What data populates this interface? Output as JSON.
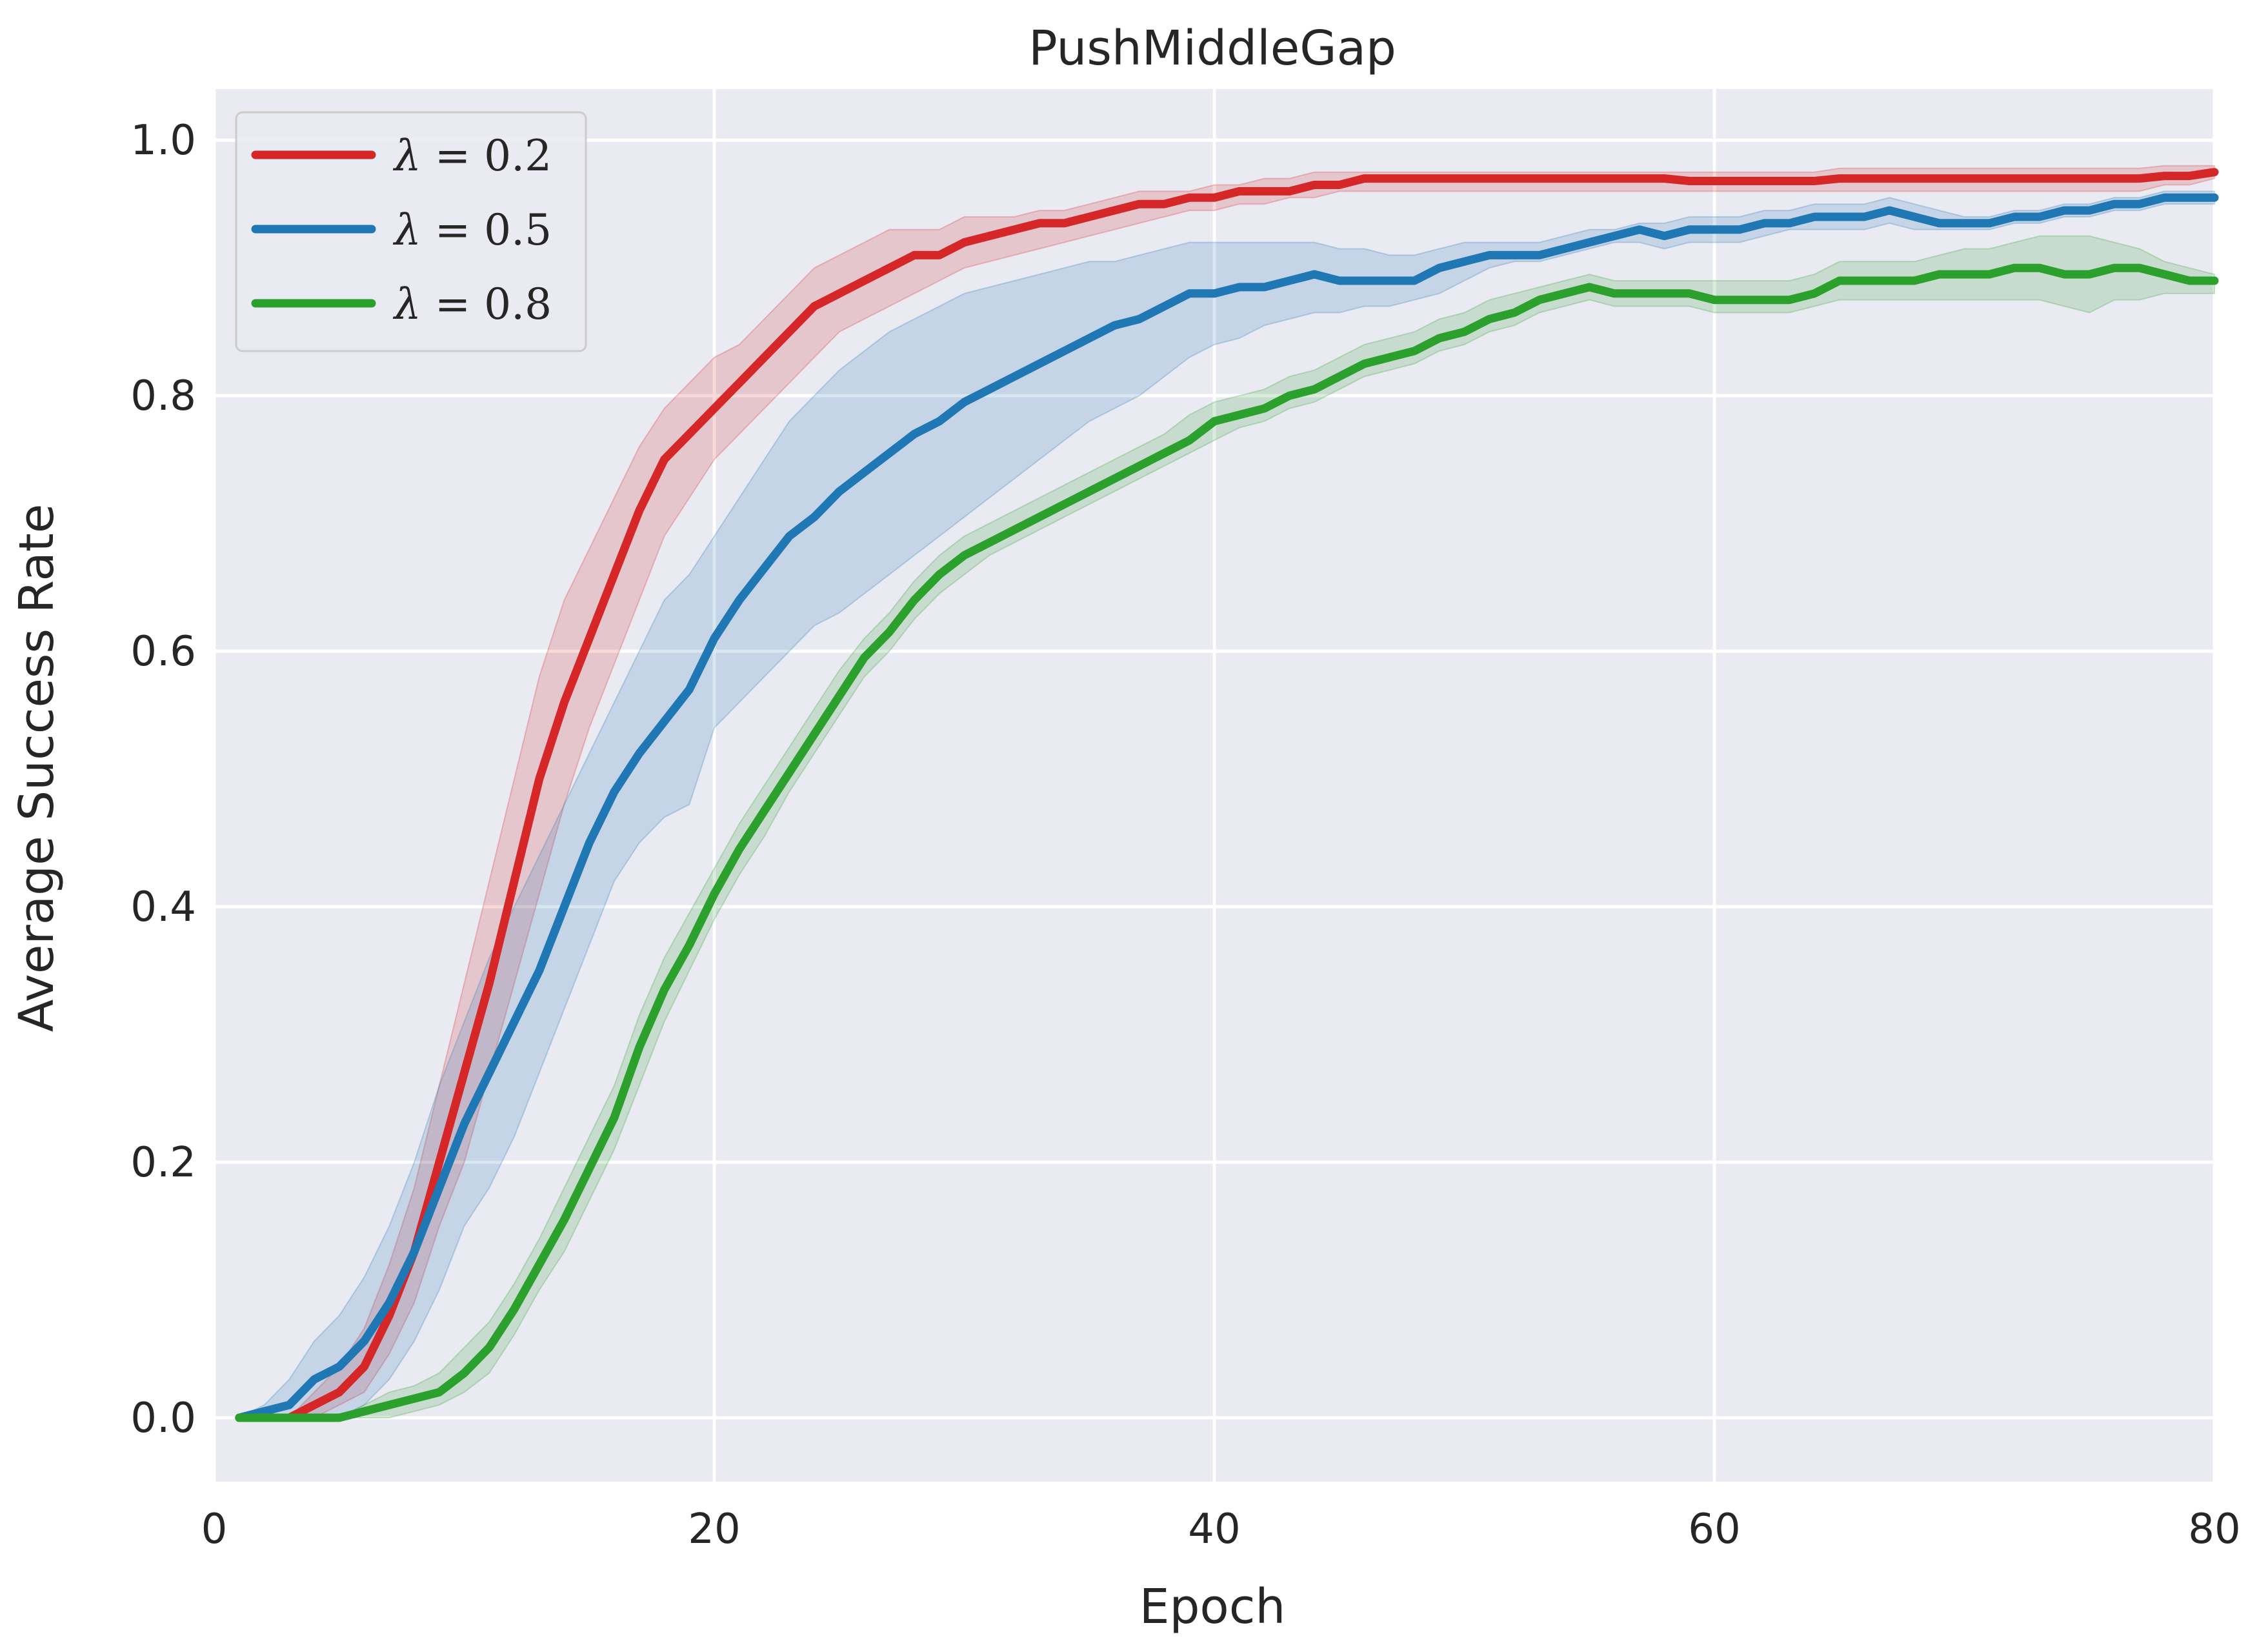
{
  "chart_data": {
    "type": "line",
    "title": "PushMiddleGap",
    "xlabel": "Epoch",
    "ylabel": "Average Success Rate",
    "xlim": [
      0,
      80
    ],
    "ylim": [
      -0.05,
      1.04
    ],
    "xticks": [
      0,
      20,
      40,
      60,
      80
    ],
    "xtick_labels": [
      "0",
      "20",
      "40",
      "60",
      "80"
    ],
    "yticks": [
      0.0,
      0.2,
      0.4,
      0.6,
      0.8,
      1.0
    ],
    "ytick_labels": [
      "0.0",
      "0.2",
      "0.4",
      "0.6",
      "0.8",
      "1.0"
    ],
    "grid": true,
    "legend_position": "top-left",
    "colors": {
      "background": "#eaeaf2",
      "grid": "#ffffff"
    },
    "x": [
      1,
      2,
      3,
      4,
      5,
      6,
      7,
      8,
      9,
      10,
      11,
      12,
      13,
      14,
      15,
      16,
      17,
      18,
      19,
      20,
      21,
      22,
      23,
      24,
      25,
      26,
      27,
      28,
      29,
      30,
      31,
      32,
      33,
      34,
      35,
      36,
      37,
      38,
      39,
      40,
      41,
      42,
      43,
      44,
      45,
      46,
      47,
      48,
      49,
      50,
      51,
      52,
      53,
      54,
      55,
      56,
      57,
      58,
      59,
      60,
      61,
      62,
      63,
      64,
      65,
      66,
      67,
      68,
      69,
      70,
      71,
      72,
      73,
      74,
      75,
      76,
      77,
      78,
      79,
      80
    ],
    "series": [
      {
        "name": "λ = 0.2",
        "label_var": "λ",
        "label_val": "0.2",
        "color": "#d62728",
        "values": [
          0,
          0,
          0,
          0.01,
          0.02,
          0.04,
          0.08,
          0.13,
          0.2,
          0.27,
          0.34,
          0.42,
          0.5,
          0.56,
          0.61,
          0.66,
          0.71,
          0.75,
          0.77,
          0.79,
          0.81,
          0.83,
          0.85,
          0.87,
          0.88,
          0.89,
          0.9,
          0.91,
          0.91,
          0.92,
          0.925,
          0.93,
          0.935,
          0.935,
          0.94,
          0.945,
          0.95,
          0.95,
          0.955,
          0.955,
          0.96,
          0.96,
          0.96,
          0.965,
          0.965,
          0.97,
          0.97,
          0.97,
          0.97,
          0.97,
          0.97,
          0.97,
          0.97,
          0.97,
          0.97,
          0.97,
          0.97,
          0.97,
          0.968,
          0.968,
          0.968,
          0.968,
          0.968,
          0.968,
          0.97,
          0.97,
          0.97,
          0.97,
          0.97,
          0.97,
          0.97,
          0.97,
          0.97,
          0.97,
          0.97,
          0.97,
          0.97,
          0.972,
          0.972,
          0.975
        ],
        "lower": [
          0,
          0,
          0,
          0,
          0.01,
          0.02,
          0.05,
          0.09,
          0.15,
          0.2,
          0.27,
          0.34,
          0.41,
          0.48,
          0.54,
          0.59,
          0.64,
          0.69,
          0.72,
          0.75,
          0.77,
          0.79,
          0.81,
          0.83,
          0.85,
          0.86,
          0.87,
          0.88,
          0.89,
          0.9,
          0.905,
          0.91,
          0.915,
          0.92,
          0.925,
          0.93,
          0.935,
          0.94,
          0.945,
          0.945,
          0.95,
          0.95,
          0.955,
          0.955,
          0.96,
          0.96,
          0.96,
          0.96,
          0.96,
          0.96,
          0.96,
          0.96,
          0.96,
          0.96,
          0.96,
          0.96,
          0.96,
          0.96,
          0.96,
          0.96,
          0.96,
          0.96,
          0.96,
          0.96,
          0.96,
          0.96,
          0.96,
          0.96,
          0.96,
          0.96,
          0.96,
          0.96,
          0.96,
          0.96,
          0.96,
          0.96,
          0.96,
          0.965,
          0.965,
          0.97
        ],
        "upper": [
          0,
          0,
          0,
          0.02,
          0.04,
          0.07,
          0.12,
          0.18,
          0.26,
          0.34,
          0.42,
          0.5,
          0.58,
          0.64,
          0.68,
          0.72,
          0.76,
          0.79,
          0.81,
          0.83,
          0.84,
          0.86,
          0.88,
          0.9,
          0.91,
          0.92,
          0.93,
          0.93,
          0.93,
          0.94,
          0.94,
          0.94,
          0.945,
          0.945,
          0.95,
          0.955,
          0.96,
          0.96,
          0.96,
          0.965,
          0.965,
          0.97,
          0.97,
          0.975,
          0.975,
          0.975,
          0.975,
          0.975,
          0.975,
          0.975,
          0.975,
          0.975,
          0.975,
          0.975,
          0.975,
          0.975,
          0.975,
          0.975,
          0.975,
          0.975,
          0.975,
          0.975,
          0.975,
          0.975,
          0.978,
          0.978,
          0.978,
          0.978,
          0.978,
          0.978,
          0.978,
          0.978,
          0.978,
          0.978,
          0.978,
          0.978,
          0.978,
          0.98,
          0.98,
          0.98
        ]
      },
      {
        "name": "λ = 0.5",
        "label_var": "λ",
        "label_val": "0.5",
        "color": "#1f77b4",
        "values": [
          0,
          0.005,
          0.01,
          0.03,
          0.04,
          0.06,
          0.09,
          0.13,
          0.18,
          0.23,
          0.27,
          0.31,
          0.35,
          0.4,
          0.45,
          0.49,
          0.52,
          0.545,
          0.57,
          0.61,
          0.64,
          0.665,
          0.69,
          0.705,
          0.725,
          0.74,
          0.755,
          0.77,
          0.78,
          0.795,
          0.805,
          0.815,
          0.825,
          0.835,
          0.845,
          0.855,
          0.86,
          0.87,
          0.88,
          0.88,
          0.885,
          0.885,
          0.89,
          0.895,
          0.89,
          0.89,
          0.89,
          0.89,
          0.9,
          0.905,
          0.91,
          0.91,
          0.91,
          0.915,
          0.92,
          0.925,
          0.93,
          0.925,
          0.93,
          0.93,
          0.93,
          0.935,
          0.935,
          0.94,
          0.94,
          0.94,
          0.945,
          0.94,
          0.935,
          0.935,
          0.935,
          0.94,
          0.94,
          0.945,
          0.945,
          0.95,
          0.95,
          0.955,
          0.955,
          0.955
        ],
        "lower": [
          0,
          0,
          0,
          0,
          0,
          0.01,
          0.03,
          0.06,
          0.1,
          0.15,
          0.18,
          0.22,
          0.27,
          0.32,
          0.37,
          0.42,
          0.45,
          0.47,
          0.48,
          0.54,
          0.56,
          0.58,
          0.6,
          0.62,
          0.63,
          0.645,
          0.66,
          0.675,
          0.69,
          0.705,
          0.72,
          0.735,
          0.75,
          0.765,
          0.78,
          0.79,
          0.8,
          0.815,
          0.83,
          0.84,
          0.845,
          0.855,
          0.86,
          0.865,
          0.865,
          0.87,
          0.87,
          0.875,
          0.88,
          0.89,
          0.9,
          0.905,
          0.905,
          0.91,
          0.915,
          0.92,
          0.92,
          0.915,
          0.92,
          0.92,
          0.92,
          0.925,
          0.93,
          0.93,
          0.93,
          0.93,
          0.935,
          0.93,
          0.93,
          0.93,
          0.93,
          0.935,
          0.935,
          0.94,
          0.94,
          0.945,
          0.945,
          0.95,
          0.95,
          0.95
        ],
        "upper": [
          0,
          0.01,
          0.03,
          0.06,
          0.08,
          0.11,
          0.15,
          0.2,
          0.26,
          0.31,
          0.36,
          0.4,
          0.44,
          0.48,
          0.52,
          0.56,
          0.6,
          0.64,
          0.66,
          0.69,
          0.72,
          0.75,
          0.78,
          0.8,
          0.82,
          0.835,
          0.85,
          0.86,
          0.87,
          0.88,
          0.885,
          0.89,
          0.895,
          0.9,
          0.905,
          0.905,
          0.91,
          0.915,
          0.92,
          0.92,
          0.92,
          0.92,
          0.92,
          0.92,
          0.915,
          0.915,
          0.91,
          0.91,
          0.915,
          0.92,
          0.92,
          0.92,
          0.92,
          0.925,
          0.93,
          0.93,
          0.935,
          0.935,
          0.94,
          0.94,
          0.94,
          0.945,
          0.945,
          0.95,
          0.95,
          0.95,
          0.955,
          0.95,
          0.945,
          0.94,
          0.94,
          0.945,
          0.945,
          0.95,
          0.95,
          0.955,
          0.955,
          0.96,
          0.96,
          0.96
        ]
      },
      {
        "name": "λ = 0.8",
        "label_var": "λ",
        "label_val": "0.8",
        "color": "#2ca02c",
        "values": [
          0,
          0,
          0,
          0,
          0,
          0.005,
          0.01,
          0.015,
          0.02,
          0.035,
          0.055,
          0.085,
          0.12,
          0.155,
          0.195,
          0.235,
          0.29,
          0.335,
          0.37,
          0.41,
          0.445,
          0.475,
          0.505,
          0.535,
          0.565,
          0.595,
          0.615,
          0.64,
          0.66,
          0.675,
          0.685,
          0.695,
          0.705,
          0.715,
          0.725,
          0.735,
          0.745,
          0.755,
          0.765,
          0.78,
          0.785,
          0.79,
          0.8,
          0.805,
          0.815,
          0.825,
          0.83,
          0.835,
          0.845,
          0.85,
          0.86,
          0.865,
          0.875,
          0.88,
          0.885,
          0.88,
          0.88,
          0.88,
          0.88,
          0.875,
          0.875,
          0.875,
          0.875,
          0.88,
          0.89,
          0.89,
          0.89,
          0.89,
          0.895,
          0.895,
          0.895,
          0.9,
          0.9,
          0.895,
          0.895,
          0.9,
          0.9,
          0.895,
          0.89,
          0.89
        ],
        "lower": [
          0,
          0,
          0,
          0,
          0,
          0,
          0,
          0.005,
          0.01,
          0.02,
          0.035,
          0.065,
          0.1,
          0.13,
          0.17,
          0.21,
          0.26,
          0.31,
          0.35,
          0.39,
          0.425,
          0.455,
          0.49,
          0.52,
          0.55,
          0.58,
          0.6,
          0.625,
          0.645,
          0.66,
          0.675,
          0.685,
          0.695,
          0.705,
          0.715,
          0.725,
          0.735,
          0.745,
          0.755,
          0.765,
          0.775,
          0.78,
          0.79,
          0.795,
          0.805,
          0.815,
          0.82,
          0.825,
          0.835,
          0.84,
          0.85,
          0.855,
          0.865,
          0.87,
          0.875,
          0.87,
          0.87,
          0.87,
          0.87,
          0.865,
          0.865,
          0.865,
          0.865,
          0.87,
          0.875,
          0.875,
          0.875,
          0.875,
          0.875,
          0.875,
          0.875,
          0.875,
          0.875,
          0.87,
          0.865,
          0.875,
          0.875,
          0.88,
          0.88,
          0.88
        ],
        "upper": [
          0,
          0,
          0,
          0,
          0,
          0.01,
          0.02,
          0.025,
          0.035,
          0.055,
          0.075,
          0.105,
          0.14,
          0.18,
          0.22,
          0.26,
          0.315,
          0.36,
          0.395,
          0.43,
          0.465,
          0.495,
          0.525,
          0.555,
          0.585,
          0.61,
          0.63,
          0.655,
          0.675,
          0.69,
          0.7,
          0.71,
          0.72,
          0.73,
          0.74,
          0.75,
          0.76,
          0.77,
          0.785,
          0.795,
          0.8,
          0.805,
          0.815,
          0.82,
          0.83,
          0.84,
          0.845,
          0.85,
          0.86,
          0.865,
          0.875,
          0.88,
          0.885,
          0.89,
          0.895,
          0.89,
          0.89,
          0.89,
          0.89,
          0.89,
          0.89,
          0.89,
          0.89,
          0.895,
          0.905,
          0.905,
          0.905,
          0.905,
          0.91,
          0.915,
          0.915,
          0.92,
          0.925,
          0.925,
          0.925,
          0.92,
          0.915,
          0.905,
          0.9,
          0.895
        ]
      }
    ]
  }
}
